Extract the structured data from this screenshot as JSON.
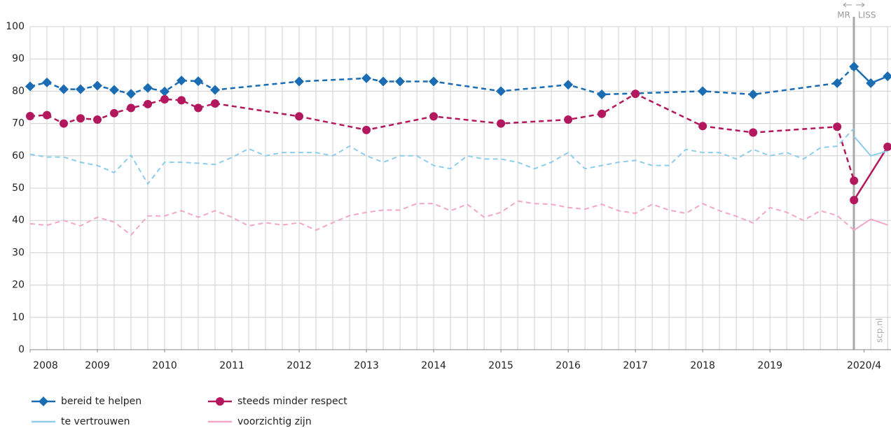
{
  "chart_data": {
    "type": "line",
    "xlim": [
      2008,
      2020.8
    ],
    "xticks": [
      2008,
      2009,
      2010,
      2011,
      2012,
      2013,
      2014,
      2015,
      2016,
      2017,
      2018,
      2019,
      {
        "value": 2020.4,
        "label": "2020/4"
      }
    ],
    "ylim": [
      0,
      100
    ],
    "yticks": [
      0,
      10,
      20,
      30,
      40,
      50,
      60,
      70,
      80,
      90,
      100
    ],
    "grid": true,
    "minor_grid_per_year": 4,
    "divider": {
      "x": 2020.25,
      "left_label": "MR",
      "right_label": "LISS"
    },
    "source": "scp.nl",
    "series": [
      {
        "name": "bereid te helpen",
        "color": "#1b6db3",
        "marker": "diamond",
        "x": [
          2008,
          2008.25,
          2008.5,
          2008.75,
          2009,
          2009.25,
          2009.5,
          2009.75,
          2010,
          2010.25,
          2010.5,
          2010.75,
          2012,
          2013,
          2013.25,
          2013.5,
          2014,
          2015,
          2016,
          2016.5,
          2018,
          2018.75,
          2020,
          2020.25,
          2020.5,
          2020.75
        ],
        "values": [
          81.5,
          82.7,
          80.6,
          80.6,
          81.7,
          80.4,
          79.2,
          81,
          79.9,
          83.3,
          83.1,
          80.4,
          83,
          84,
          83,
          83,
          83,
          80,
          82,
          79,
          80,
          79,
          82.5,
          87.6,
          82.5,
          84.6
        ]
      },
      {
        "name": "steeds minder respect",
        "color": "#b3175d",
        "marker": "circle",
        "x": [
          2008,
          2008.25,
          2008.5,
          2008.75,
          2009,
          2009.25,
          2009.5,
          2009.75,
          2010,
          2010.25,
          2010.5,
          2010.75,
          2012,
          2013,
          2014,
          2015,
          2016,
          2016.5,
          2017,
          2018,
          2018.75,
          2020,
          2020.25,
          null,
          2020.25,
          2020.75
        ],
        "values": [
          72.3,
          72.6,
          70,
          71.6,
          71.2,
          73.2,
          74.8,
          76,
          77.5,
          77.2,
          74.8,
          76.2,
          72.2,
          68,
          72.2,
          70,
          71.2,
          73,
          79.2,
          69.2,
          67.2,
          69,
          52.3,
          null,
          46.3,
          62.8
        ]
      },
      {
        "name": "te vertrouwen",
        "color": "#8fcdec",
        "marker": null,
        "x": [
          2008,
          2008.25,
          2008.5,
          2008.75,
          2009,
          2009.25,
          2009.5,
          2009.75,
          2010,
          2010.25,
          2010.5,
          2010.75,
          2011,
          2011.25,
          2011.5,
          2011.75,
          2012,
          2012.25,
          2012.5,
          2012.75,
          2013,
          2013.25,
          2013.5,
          2013.75,
          2014,
          2014.25,
          2014.5,
          2014.75,
          2015,
          2015.25,
          2015.5,
          2015.75,
          2016,
          2016.25,
          2016.5,
          2016.75,
          2017,
          2017.25,
          2017.5,
          2017.75,
          2018,
          2018.25,
          2018.5,
          2018.75,
          2019,
          2019.25,
          2019.5,
          2019.75,
          2020,
          2020.25,
          null,
          2020.25,
          2020.5,
          2020.75
        ],
        "values": [
          60.5,
          59.6,
          59.6,
          58,
          57,
          54.8,
          60.2,
          51.3,
          58,
          58,
          57.7,
          57.3,
          59.5,
          62.2,
          60,
          61,
          61,
          61,
          60,
          63,
          60,
          58,
          60,
          60,
          57,
          56,
          60,
          59,
          59,
          58,
          56,
          58,
          61,
          56,
          57,
          58,
          58.6,
          57,
          57,
          62,
          61,
          61,
          59,
          62,
          60,
          61,
          59,
          62.5,
          63,
          68.5,
          null,
          66,
          60,
          61.5
        ]
      },
      {
        "name": "voorzichtig zijn",
        "color": "#f2a7c9",
        "marker": null,
        "x": [
          2008,
          2008.25,
          2008.5,
          2008.75,
          2009,
          2009.25,
          2009.5,
          2009.75,
          2010,
          2010.25,
          2010.5,
          2010.75,
          2011,
          2011.25,
          2011.5,
          2011.75,
          2012,
          2012.25,
          2012.5,
          2012.75,
          2013,
          2013.25,
          2013.5,
          2013.75,
          2014,
          2014.25,
          2014.5,
          2014.75,
          2015,
          2015.25,
          2015.5,
          2015.75,
          2016,
          2016.25,
          2016.5,
          2016.75,
          2017,
          2017.25,
          2017.5,
          2017.75,
          2018,
          2018.25,
          2018.5,
          2018.75,
          2019,
          2019.25,
          2019.5,
          2019.75,
          2020,
          2020.25,
          2020.5,
          2020.75
        ],
        "values": [
          39,
          38.5,
          40,
          38.3,
          41,
          39.5,
          35.5,
          41.4,
          41.4,
          43,
          41,
          43,
          41,
          38.3,
          39.3,
          38.6,
          39.3,
          37,
          39.3,
          41.5,
          42.5,
          43.2,
          43.2,
          45.2,
          45.2,
          43,
          45,
          41,
          42.5,
          46,
          45.2,
          45,
          44,
          43.5,
          45,
          43,
          42.2,
          45,
          43.2,
          42.2,
          45.2,
          43,
          41.3,
          39.2,
          44,
          42.5,
          40,
          43,
          41.5,
          37,
          40.4,
          38.6
        ]
      }
    ]
  }
}
